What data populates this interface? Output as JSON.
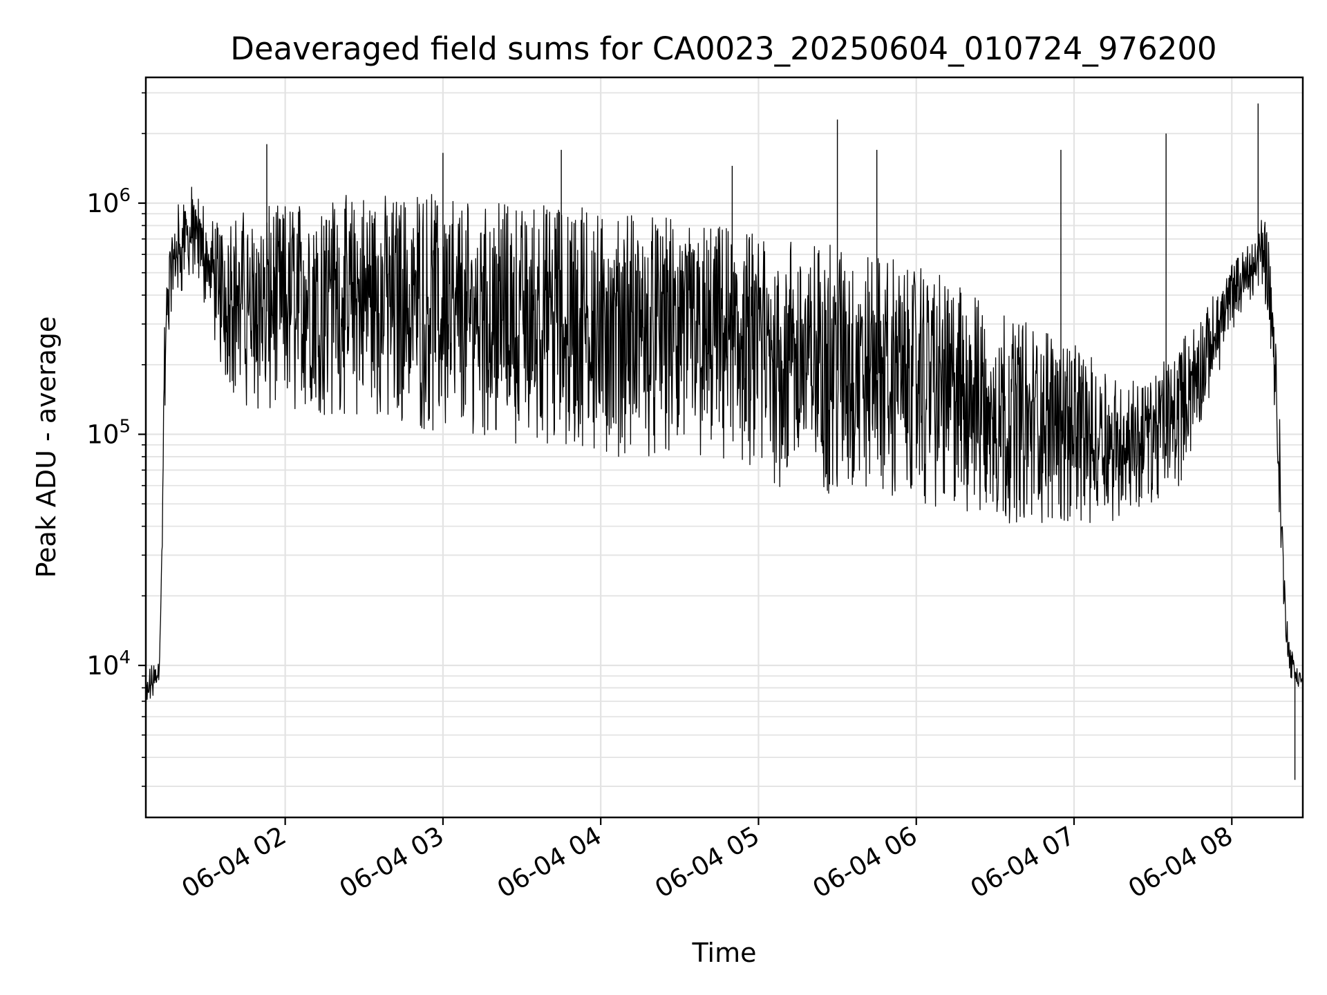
{
  "chart_data": {
    "type": "line",
    "title": "Deaveraged field sums for CA0023_20250604_010724_976200",
    "xlabel": "Time",
    "ylabel": "Peak ADU - average",
    "yscale": "log",
    "grid": true,
    "line_color": "#000000",
    "grid_color": "#e3e3e3",
    "xlim": [
      "2025-06-04 01:07:00",
      "2025-06-04 08:27:00"
    ],
    "ylim": [
      2200,
      3500000
    ],
    "x_ticks": [
      {
        "value": "2025-06-04 02:00",
        "label": "06-04 02"
      },
      {
        "value": "2025-06-04 03:00",
        "label": "06-04 03"
      },
      {
        "value": "2025-06-04 04:00",
        "label": "06-04 04"
      },
      {
        "value": "2025-06-04 05:00",
        "label": "06-04 05"
      },
      {
        "value": "2025-06-04 06:00",
        "label": "06-04 06"
      },
      {
        "value": "2025-06-04 07:00",
        "label": "06-04 07"
      },
      {
        "value": "2025-06-04 08:00",
        "label": "06-04 08"
      }
    ],
    "y_ticks": [
      {
        "value": 10000,
        "base": "10",
        "exp": "4"
      },
      {
        "value": 100000,
        "base": "10",
        "exp": "5"
      },
      {
        "value": 1000000,
        "base": "10",
        "exp": "6"
      }
    ],
    "series": [
      {
        "x": [
          "2025-06-04 01:07",
          "2025-06-04 01:09",
          "2025-06-04 01:12",
          "2025-06-04 01:13",
          "2025-06-04 01:14",
          "2025-06-04 01:16",
          "2025-06-04 01:20",
          "2025-06-04 01:25",
          "2025-06-04 01:30",
          "2025-06-04 01:35",
          "2025-06-04 01:40",
          "2025-06-04 01:50",
          "2025-06-04 02:00",
          "2025-06-04 02:15",
          "2025-06-04 02:30",
          "2025-06-04 02:45",
          "2025-06-04 03:00",
          "2025-06-04 03:15",
          "2025-06-04 03:30",
          "2025-06-04 03:45",
          "2025-06-04 04:00",
          "2025-06-04 04:15",
          "2025-06-04 04:30",
          "2025-06-04 04:45",
          "2025-06-04 05:00",
          "2025-06-04 05:15",
          "2025-06-04 05:30",
          "2025-06-04 05:45",
          "2025-06-04 06:00",
          "2025-06-04 06:15",
          "2025-06-04 06:30",
          "2025-06-04 06:45",
          "2025-06-04 07:00",
          "2025-06-04 07:10",
          "2025-06-04 07:20",
          "2025-06-04 07:30",
          "2025-06-04 07:40",
          "2025-06-04 07:50",
          "2025-06-04 08:00",
          "2025-06-04 08:05",
          "2025-06-04 08:10",
          "2025-06-04 08:12",
          "2025-06-04 08:15",
          "2025-06-04 08:18",
          "2025-06-04 08:20",
          "2025-06-04 08:22",
          "2025-06-04 08:24",
          "2025-06-04 08:27"
        ],
        "low": [
          6500,
          7000,
          8000,
          20000,
          95000,
          300000,
          400000,
          450000,
          350000,
          200000,
          150000,
          120000,
          120000,
          120000,
          120000,
          110000,
          100000,
          100000,
          90000,
          85000,
          80000,
          80000,
          80000,
          75000,
          60000,
          55000,
          55000,
          55000,
          50000,
          45000,
          42000,
          40000,
          40000,
          40000,
          45000,
          50000,
          60000,
          120000,
          280000,
          350000,
          400000,
          420000,
          220000,
          40000,
          15000,
          9000,
          8000,
          7500
        ],
        "high": [
          9000,
          10000,
          11000,
          30000,
          300000,
          800000,
          1100000,
          1200000,
          950000,
          850000,
          900000,
          950000,
          1000000,
          1100000,
          1100000,
          1100000,
          1100000,
          1000000,
          1000000,
          1000000,
          950000,
          900000,
          850000,
          800000,
          750000,
          700000,
          650000,
          600000,
          550000,
          450000,
          350000,
          300000,
          250000,
          200000,
          170000,
          180000,
          250000,
          350000,
          550000,
          650000,
          800000,
          1000000,
          600000,
          150000,
          25000,
          12000,
          11000,
          9000
        ],
        "spikes": [
          {
            "x": "2025-06-04 01:53",
            "y": 1800000
          },
          {
            "x": "2025-06-04 03:00",
            "y": 1650000
          },
          {
            "x": "2025-06-04 03:45",
            "y": 1700000
          },
          {
            "x": "2025-06-04 04:50",
            "y": 1450000
          },
          {
            "x": "2025-06-04 05:30",
            "y": 2300000
          },
          {
            "x": "2025-06-04 05:45",
            "y": 1700000
          },
          {
            "x": "2025-06-04 06:55",
            "y": 1700000
          },
          {
            "x": "2025-06-04 07:35",
            "y": 2000000
          },
          {
            "x": "2025-06-04 08:10",
            "y": 2700000
          },
          {
            "x": "2025-06-04 08:24",
            "y": 3200
          }
        ]
      }
    ]
  }
}
